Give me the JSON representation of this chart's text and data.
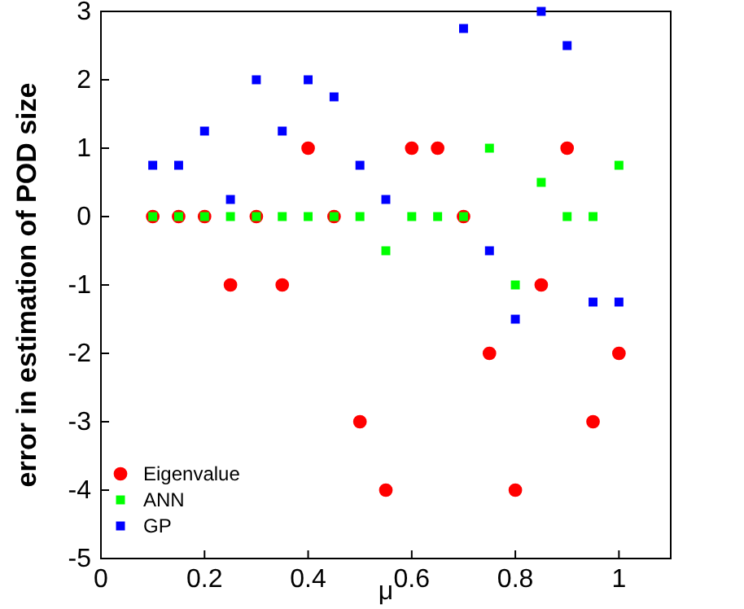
{
  "chart_data": {
    "type": "scatter",
    "xlabel": "μ",
    "ylabel": "error in estimation of POD size",
    "x": [
      0.1,
      0.15,
      0.2,
      0.25,
      0.3,
      0.35,
      0.4,
      0.45,
      0.5,
      0.55,
      0.6,
      0.65,
      0.7,
      0.75,
      0.8,
      0.85,
      0.9,
      0.95,
      1.0
    ],
    "series": [
      {
        "name": "Eigenvalue",
        "color": "#ff0000",
        "marker": "circle",
        "values": [
          0,
          0,
          0,
          -1,
          0,
          -1,
          1,
          0,
          -3,
          -4,
          1,
          1,
          0,
          -2,
          -4,
          -1,
          1,
          -3,
          -2
        ]
      },
      {
        "name": "ANN",
        "color": "#00ff00",
        "marker": "square",
        "values": [
          0,
          0,
          0,
          0,
          0,
          0,
          0,
          0,
          0,
          -0.5,
          0,
          0,
          0,
          1,
          -1,
          0.5,
          0,
          0,
          0.75
        ]
      },
      {
        "name": "GP",
        "color": "#0000ff",
        "marker": "square",
        "values": [
          0.75,
          0.75,
          1.25,
          0.25,
          2,
          1.25,
          2,
          1.75,
          0.75,
          0.25,
          null,
          null,
          2.75,
          -0.5,
          -1.5,
          3,
          2.5,
          -1.25,
          -1.25
        ]
      }
    ],
    "xlim": [
      0,
      1.1
    ],
    "xticks": [
      0,
      0.2,
      0.4,
      0.6,
      0.8,
      1
    ],
    "ylim": [
      -5,
      3
    ],
    "yticks": [
      -5,
      -4,
      -3,
      -2,
      -1,
      0,
      1,
      2,
      3
    ],
    "grid": false,
    "legend": "bottom left"
  }
}
